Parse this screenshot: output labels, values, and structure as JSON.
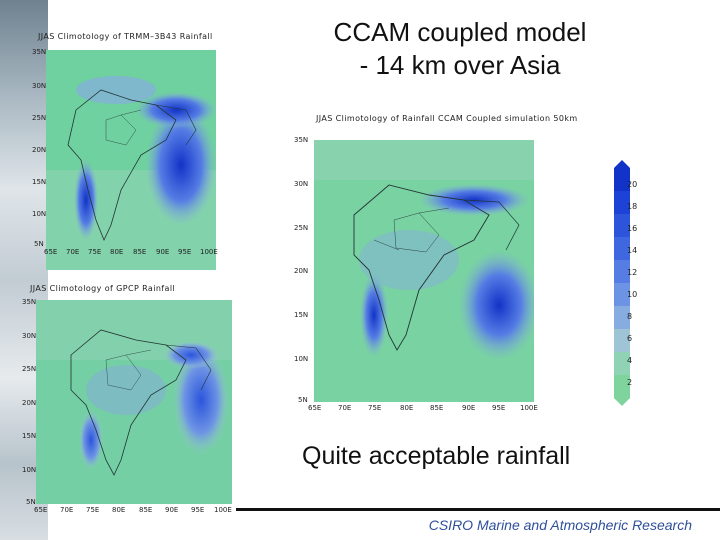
{
  "slide": {
    "title_line1": "CCAM coupled model",
    "title_line2": "- 14 km over Asia",
    "caption": "Quite acceptable rainfall",
    "footer": "CSIRO Marine and Atmospheric Research"
  },
  "maps": {
    "trmm": {
      "title": "JJAS Climotology of TRMM–3B43 Rainfall",
      "lat_labels": [
        "35N",
        "30N",
        "25N",
        "20N",
        "15N",
        "10N",
        "5N"
      ],
      "lon_labels": [
        "65E",
        "70E",
        "75E",
        "80E",
        "85E",
        "90E",
        "95E",
        "100E"
      ]
    },
    "gpcp": {
      "title": "JJAS Climotology of GPCP Rainfall",
      "lat_labels": [
        "35N",
        "30N",
        "25N",
        "20N",
        "15N",
        "10N",
        "5N"
      ],
      "lon_labels": [
        "65E",
        "70E",
        "75E",
        "80E",
        "85E",
        "90E",
        "95E",
        "100E"
      ]
    },
    "ccam": {
      "title": "JJAS Climotology of Rainfall CCAM Coupled simulation 50km",
      "lat_labels": [
        "35N",
        "30N",
        "25N",
        "20N",
        "15N",
        "10N",
        "5N"
      ],
      "lon_labels": [
        "65E",
        "70E",
        "75E",
        "80E",
        "85E",
        "90E",
        "95E",
        "100E"
      ]
    }
  },
  "colorbar": {
    "labels": [
      "20",
      "18",
      "16",
      "14",
      "12",
      "10",
      "8",
      "6",
      "4",
      "2"
    ],
    "colors": [
      "#1233c8",
      "#1c42d6",
      "#2c55dc",
      "#3f68e0",
      "#557de4",
      "#6d94e4",
      "#86ace0",
      "#9ec4d6",
      "#8fd3b4",
      "#7fd49e"
    ]
  }
}
